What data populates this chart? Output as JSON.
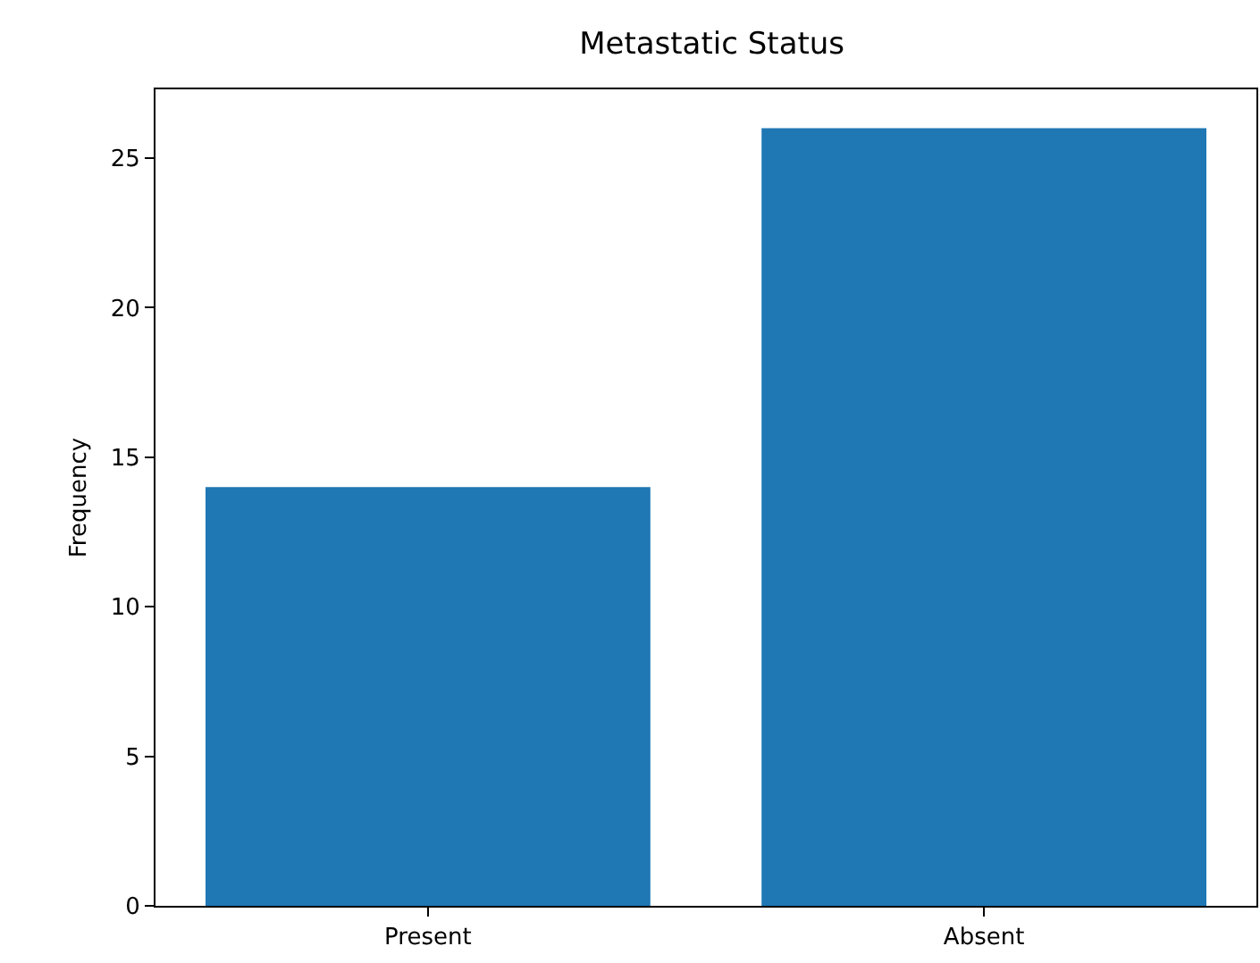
{
  "chart_data": {
    "type": "bar",
    "title": "Metastatic Status",
    "ylabel": "Frequency",
    "categories": [
      "Present",
      "Absent"
    ],
    "values": [
      14,
      26
    ],
    "color": "#1f77b4",
    "ylim": [
      0,
      27.3
    ],
    "yticks": [
      0,
      5,
      10,
      15,
      20,
      25
    ],
    "grid": false
  }
}
